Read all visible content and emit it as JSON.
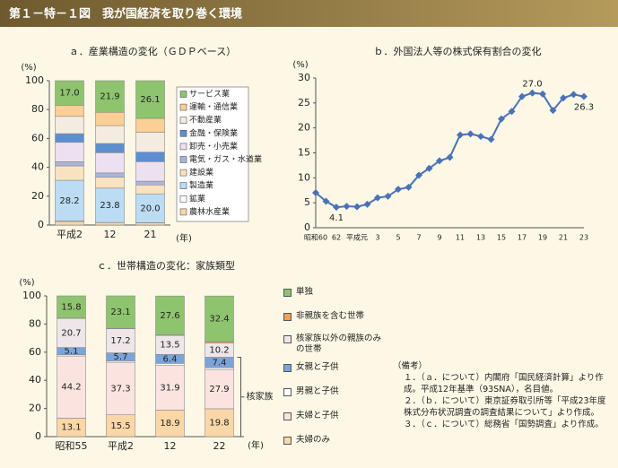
{
  "header": {
    "title": "第１－特－１図　我が国経済を取り巻く環境"
  },
  "chart_data": [
    {
      "type": "stacked_bar",
      "title": "ａ．産業構造の変化（ＧＤＰベース）",
      "y_label": "(%)",
      "x_label": "(年)",
      "categories": [
        "平成2",
        "12",
        "21"
      ],
      "ylim": [
        0,
        100
      ],
      "yticks": [
        0,
        20,
        40,
        60,
        80,
        100
      ],
      "grid": false,
      "series": [
        {
          "name": "農林水産業",
          "color": "#f9d6a4",
          "values": [
            2.5,
            1.7,
            1.5
          ]
        },
        {
          "name": "鉱業",
          "color": "#ffffff",
          "values": [
            0.3,
            0.1,
            0.1
          ]
        },
        {
          "name": "製造業",
          "color": "#bcdcf4",
          "values": [
            28.2,
            23.8,
            20.0
          ],
          "value_labels": [
            "28.2",
            "23.8",
            "20.0"
          ]
        },
        {
          "name": "建設業",
          "color": "#f8e2c0",
          "values": [
            10.0,
            7.6,
            6.2
          ]
        },
        {
          "name": "電気・ガス・水道業",
          "color": "#a9b6dc",
          "values": [
            2.9,
            2.9,
            2.6
          ]
        },
        {
          "name": "卸売・小売業",
          "color": "#ede0f0",
          "values": [
            13.4,
            14.0,
            13.5
          ]
        },
        {
          "name": "金融・保険業",
          "color": "#5c8fd0",
          "values": [
            6.0,
            6.4,
            6.6
          ]
        },
        {
          "name": "不動産業",
          "color": "#f4ece0",
          "values": [
            12.0,
            12.4,
            13.8
          ]
        },
        {
          "name": "運輸・通信業",
          "color": "#fbcf95",
          "values": [
            7.7,
            9.2,
            9.6
          ]
        },
        {
          "name": "サービス業",
          "color": "#8fc46f",
          "values": [
            17.0,
            21.9,
            26.1
          ],
          "value_labels": [
            "17.0",
            "21.9",
            "26.1"
          ]
        }
      ]
    },
    {
      "type": "line",
      "title": "ｂ．外国法人等の株式保有割合の変化",
      "y_label": "(%)",
      "categories": [
        "昭和60",
        null,
        "62",
        null,
        "平成元",
        null,
        "3",
        null,
        "5",
        null,
        "7",
        null,
        "9",
        null,
        "11",
        null,
        "13",
        null,
        "15",
        null,
        "17",
        null,
        "19",
        null,
        "21",
        null,
        "23"
      ],
      "ylim": [
        0,
        30
      ],
      "yticks": [
        0,
        5,
        10,
        15,
        20,
        25,
        30
      ],
      "grid": false,
      "color": "#4a72b8",
      "values": [
        7.0,
        5.3,
        4.1,
        4.3,
        4.2,
        4.7,
        6.0,
        6.3,
        7.7,
        8.1,
        10.5,
        11.9,
        13.4,
        14.1,
        18.6,
        18.8,
        18.3,
        17.7,
        21.8,
        23.3,
        26.3,
        27.0,
        26.8,
        23.5,
        26.0,
        26.7,
        26.3
      ],
      "value_labels": [
        null,
        null,
        "4.1",
        null,
        null,
        null,
        null,
        null,
        null,
        null,
        null,
        null,
        null,
        null,
        null,
        null,
        null,
        null,
        null,
        null,
        null,
        "27.0",
        null,
        null,
        null,
        null,
        "26.3"
      ]
    },
    {
      "type": "stacked_bar",
      "title": "ｃ．世帯構造の変化：家族類型",
      "y_label": "(%)",
      "x_label": "(年)",
      "bracket_label": "核家族",
      "categories": [
        "昭和55",
        "平成2",
        "12",
        "22"
      ],
      "ylim": [
        0,
        100
      ],
      "yticks": [
        0,
        20,
        40,
        60,
        80,
        100
      ],
      "grid": false,
      "series": [
        {
          "name": "夫婦のみ",
          "color": "#fbd7a8",
          "values": [
            13.1,
            15.5,
            18.9,
            19.8
          ],
          "value_labels": [
            "13.1",
            "15.5",
            "18.9",
            "19.8"
          ]
        },
        {
          "name": "夫婦と子供",
          "color": "#fbe4df",
          "values": [
            44.2,
            37.3,
            31.9,
            27.9
          ],
          "value_labels": [
            "44.2",
            "37.3",
            "31.9",
            "27.9"
          ]
        },
        {
          "name": "男親と子供",
          "color": "#ffffff",
          "values": [
            0.9,
            1.0,
            1.2,
            1.3
          ]
        },
        {
          "name": "女親と子供",
          "color": "#7ba4da",
          "values": [
            5.1,
            5.7,
            6.4,
            7.4
          ],
          "value_labels": [
            "5.1",
            "5.7",
            "6.4",
            "7.4"
          ]
        },
        {
          "name": "核家族以外の親族のみの世帯",
          "color": "#efe6ea",
          "values": [
            20.7,
            17.2,
            13.5,
            10.2
          ],
          "value_labels": [
            "20.7",
            "17.2",
            "13.5",
            "10.2"
          ]
        },
        {
          "name": "非親族を含む世帯",
          "color": "#f5a04c",
          "values": [
            0.2,
            0.2,
            0.4,
            0.9
          ]
        },
        {
          "name": "単独",
          "color": "#8fc46f",
          "values": [
            15.8,
            23.1,
            27.6,
            32.4
          ],
          "value_labels": [
            "15.8",
            "23.1",
            "27.6",
            "32.4"
          ]
        }
      ]
    }
  ],
  "notes": {
    "heading": "（備考）",
    "items": [
      "１．（ａ．について）内閣府「国民経済計算」より作成。平成12年基準（93SNA），名目値。",
      "２．（ｂ．について）東京証券取引所等「平成23年度株式分布状況調査の調査結果について」より作成。",
      "３．（ｃ．について）総務省「国勢調査」より作成。"
    ]
  }
}
